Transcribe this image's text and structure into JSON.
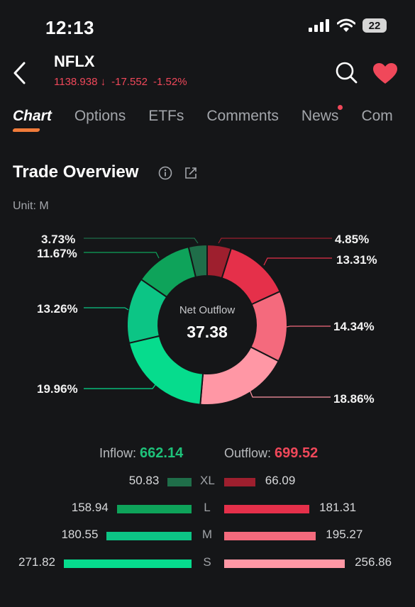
{
  "status_bar": {
    "time": "12:13",
    "battery": "22"
  },
  "header": {
    "ticker": "NFLX",
    "price": "1138.938",
    "change": "-17.552",
    "change_pct": "-1.52%"
  },
  "tabs": [
    {
      "label": "Chart",
      "active": true
    },
    {
      "label": "Options"
    },
    {
      "label": "ETFs"
    },
    {
      "label": "Comments"
    },
    {
      "label": "News",
      "dot": true
    },
    {
      "label": "Com"
    }
  ],
  "section": {
    "title": "Trade Overview",
    "unit": "Unit: M"
  },
  "donut": {
    "center_label": "Net Outflow",
    "center_value": "37.38",
    "outflow_labels": [
      "4.85%",
      "13.31%",
      "14.34%",
      "18.86%"
    ],
    "inflow_labels": [
      "3.73%",
      "11.67%",
      "13.26%",
      "19.96%"
    ]
  },
  "chart_data": {
    "type": "pie",
    "slices": [
      {
        "label": "XL Outflow",
        "value": 4.85,
        "color": "#9e1f2e"
      },
      {
        "label": "L Outflow",
        "value": 13.31,
        "color": "#e5304a"
      },
      {
        "label": "M Outflow",
        "value": 14.34,
        "color": "#f46a7d"
      },
      {
        "label": "S Outflow",
        "value": 18.86,
        "color": "#ff97a5"
      },
      {
        "label": "S Inflow",
        "value": 19.96,
        "color": "#06dc8d"
      },
      {
        "label": "M Inflow",
        "value": 13.26,
        "color": "#0cc585"
      },
      {
        "label": "L Inflow",
        "value": 11.67,
        "color": "#0ea35a"
      },
      {
        "label": "XL Inflow",
        "value": 3.73,
        "color": "#1f6e49"
      }
    ]
  },
  "flows": {
    "inflow_label": "Inflow:",
    "inflow_value": "662.14",
    "outflow_label": "Outflow:",
    "outflow_value": "699.52",
    "rows": [
      {
        "size": "XL",
        "inflow": "50.83",
        "outflow": "66.09",
        "in_num": 50.83,
        "out_num": 66.09,
        "in_color": "#1f6e49",
        "out_color": "#9e1f2e"
      },
      {
        "size": "L",
        "inflow": "158.94",
        "outflow": "181.31",
        "in_num": 158.94,
        "out_num": 181.31,
        "in_color": "#0ea35a",
        "out_color": "#e5304a"
      },
      {
        "size": "M",
        "inflow": "180.55",
        "outflow": "195.27",
        "in_num": 180.55,
        "out_num": 195.27,
        "in_color": "#0cc585",
        "out_color": "#f46a7d"
      },
      {
        "size": "S",
        "inflow": "271.82",
        "outflow": "256.86",
        "in_num": 271.82,
        "out_num": 256.86,
        "in_color": "#06dc8d",
        "out_color": "#ff97a5"
      }
    ]
  },
  "colors": {
    "accent_up": "#1ec27a",
    "accent_down": "#f0485a",
    "tab_underline": "#f07b3a"
  }
}
